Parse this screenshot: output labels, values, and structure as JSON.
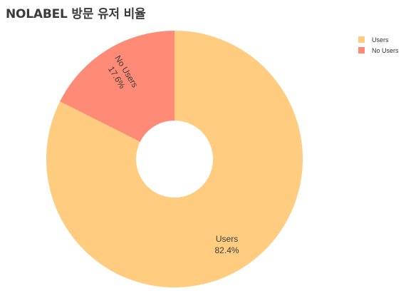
{
  "chart_data": {
    "type": "pie",
    "title": "NOLABEL 방문 유저 비율",
    "donut": true,
    "categories": [
      "Users",
      "No Users"
    ],
    "values": [
      82.4,
      17.6
    ],
    "slice_labels": [
      {
        "name": "Users",
        "percent": "82.4%"
      },
      {
        "name": "No Users",
        "percent": "17.6%"
      }
    ],
    "colors": [
      "#FFCC80",
      "#FF8A75"
    ],
    "legend": {
      "placement": "top-right",
      "items": [
        {
          "label": "Users",
          "color": "#FFCC80"
        },
        {
          "label": "No Users",
          "color": "#FF8A75"
        }
      ]
    }
  }
}
